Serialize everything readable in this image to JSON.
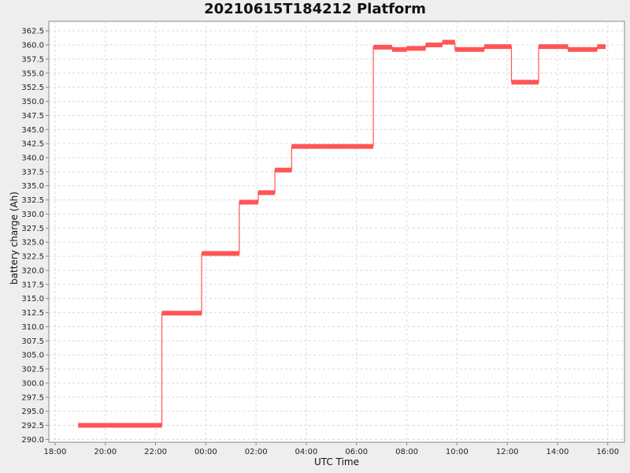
{
  "chart_data": {
    "type": "line",
    "title": "20210615T184212 Platform",
    "xlabel": "UTC Time",
    "ylabel": "battery charge (Ah)",
    "grid": true,
    "legend": "none",
    "line_color": "#ff5555",
    "xlim": [
      "2021-06-15T17:45",
      "2021-06-16T16:40"
    ],
    "ylim": [
      289.5,
      364.2
    ],
    "x_ticks": [
      "18:00",
      "20:00",
      "22:00",
      "00:00",
      "02:00",
      "04:00",
      "06:00",
      "08:00",
      "10:00",
      "12:00",
      "14:00",
      "16:00"
    ],
    "y_ticks": [
      "290.0",
      "292.5",
      "295.0",
      "297.5",
      "300.0",
      "302.5",
      "305.0",
      "307.5",
      "310.0",
      "312.5",
      "315.0",
      "317.5",
      "320.0",
      "322.5",
      "325.0",
      "327.5",
      "330.0",
      "332.5",
      "335.0",
      "337.5",
      "340.0",
      "342.5",
      "345.0",
      "347.5",
      "350.0",
      "352.5",
      "355.0",
      "357.5",
      "360.0",
      "362.5"
    ],
    "segments": [
      {
        "x_start": "2021-06-15T18:55",
        "x_end": "2021-06-15T22:15",
        "y": 292.5
      },
      {
        "x_start": "2021-06-15T22:15",
        "x_end": "2021-06-15T23:50",
        "y": 312.4
      },
      {
        "x_start": "2021-06-15T23:50",
        "x_end": "2021-06-16T01:20",
        "y": 323.0
      },
      {
        "x_start": "2021-06-16T01:20",
        "x_end": "2021-06-16T02:05",
        "y": 332.1
      },
      {
        "x_start": "2021-06-16T02:05",
        "x_end": "2021-06-16T02:45",
        "y": 333.8
      },
      {
        "x_start": "2021-06-16T02:45",
        "x_end": "2021-06-16T03:25",
        "y": 337.8
      },
      {
        "x_start": "2021-06-16T03:25",
        "x_end": "2021-06-16T05:50",
        "y": 342.0
      },
      {
        "x_start": "2021-06-16T05:50",
        "x_end": "2021-06-16T06:40",
        "y": 342.0
      },
      {
        "x_start": "2021-06-16T06:40",
        "x_end": "2021-06-16T07:25",
        "y": 359.6
      },
      {
        "x_start": "2021-06-16T07:25",
        "x_end": "2021-06-16T08:00",
        "y": 359.2
      },
      {
        "x_start": "2021-06-16T08:00",
        "x_end": "2021-06-16T08:45",
        "y": 359.4
      },
      {
        "x_start": "2021-06-16T08:45",
        "x_end": "2021-06-16T09:25",
        "y": 360.0
      },
      {
        "x_start": "2021-06-16T09:25",
        "x_end": "2021-06-16T09:55",
        "y": 360.5
      },
      {
        "x_start": "2021-06-16T09:55",
        "x_end": "2021-06-16T11:05",
        "y": 359.2
      },
      {
        "x_start": "2021-06-16T11:05",
        "x_end": "2021-06-16T12:10",
        "y": 359.7
      },
      {
        "x_start": "2021-06-16T12:10",
        "x_end": "2021-06-16T13:15",
        "y": 353.4
      },
      {
        "x_start": "2021-06-16T13:15",
        "x_end": "2021-06-16T14:25",
        "y": 359.7
      },
      {
        "x_start": "2021-06-16T14:25",
        "x_end": "2021-06-16T15:35",
        "y": 359.2
      },
      {
        "x_start": "2021-06-16T15:35",
        "x_end": "2021-06-16T15:55",
        "y": 359.7
      }
    ]
  }
}
